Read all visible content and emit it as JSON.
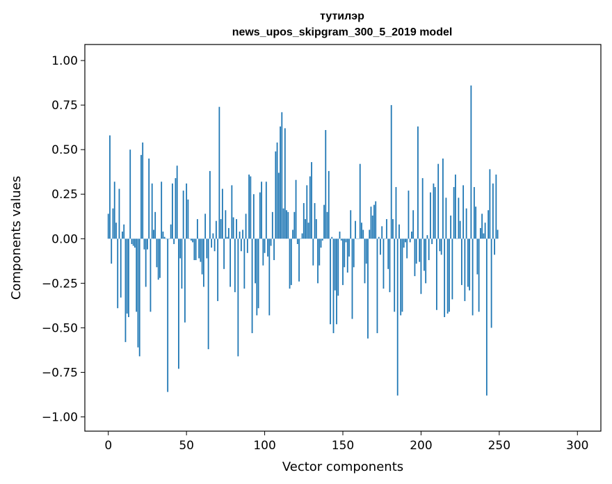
{
  "chart_data": {
    "type": "bar",
    "title": "тутилэр",
    "subtitle": "news_upos_skipgram_300_5_2019 model",
    "xlabel": "Vector components",
    "ylabel": "Components values",
    "xlim": [
      -15,
      315
    ],
    "ylim": [
      -1.08,
      1.09
    ],
    "xticks": [
      0,
      50,
      100,
      150,
      200,
      250,
      300
    ],
    "xtick_labels": [
      "0",
      "50",
      "100",
      "150",
      "200",
      "250",
      "300"
    ],
    "yticks": [
      1.0,
      0.75,
      0.5,
      0.25,
      0.0,
      -0.25,
      -0.5,
      -0.75,
      -1.0
    ],
    "ytick_labels": [
      "1.00",
      "0.75",
      "0.50",
      "0.25",
      "0.00",
      "−0.25",
      "−0.50",
      "−0.75",
      "−1.00"
    ],
    "grid": false,
    "bar_color": "#1f77b4",
    "values": [
      0.14,
      0.58,
      -0.14,
      0.17,
      0.32,
      0.09,
      -0.39,
      0.28,
      -0.33,
      0.04,
      0.08,
      -0.58,
      -0.42,
      -0.44,
      0.5,
      -0.03,
      -0.04,
      -0.05,
      -0.41,
      -0.61,
      -0.66,
      0.47,
      0.54,
      -0.06,
      -0.27,
      -0.06,
      0.45,
      -0.41,
      0.31,
      0.05,
      0.15,
      -0.16,
      -0.23,
      -0.22,
      0.32,
      0.04,
      0.01,
      0.0,
      -0.86,
      0.0,
      0.08,
      0.31,
      -0.03,
      0.34,
      0.41,
      -0.73,
      -0.11,
      -0.28,
      0.27,
      -0.47,
      0.31,
      0.22,
      0.0,
      -0.01,
      -0.02,
      -0.12,
      -0.12,
      0.11,
      -0.11,
      -0.13,
      -0.2,
      -0.27,
      0.14,
      -0.11,
      -0.62,
      0.38,
      -0.05,
      0.03,
      -0.07,
      0.1,
      -0.35,
      0.74,
      0.11,
      0.28,
      -0.17,
      0.16,
      0.01,
      0.06,
      -0.27,
      0.3,
      0.12,
      -0.3,
      0.11,
      -0.66,
      0.04,
      -0.07,
      0.05,
      -0.28,
      0.14,
      -0.08,
      0.36,
      0.35,
      -0.53,
      0.25,
      -0.25,
      -0.43,
      -0.39,
      0.26,
      0.32,
      -0.15,
      -0.08,
      0.32,
      -0.1,
      -0.43,
      -0.04,
      0.15,
      -0.12,
      0.49,
      0.54,
      0.37,
      0.63,
      0.71,
      0.17,
      0.62,
      0.16,
      0.15,
      -0.28,
      -0.26,
      0.05,
      0.15,
      0.33,
      -0.03,
      -0.24,
      0.0,
      0.03,
      0.2,
      0.11,
      0.3,
      0.09,
      0.35,
      0.43,
      -0.15,
      0.2,
      0.11,
      -0.25,
      -0.15,
      -0.05,
      -0.01,
      0.19,
      0.61,
      0.15,
      0.38,
      -0.48,
      0.01,
      -0.53,
      -0.29,
      -0.48,
      -0.32,
      0.04,
      -0.01,
      -0.26,
      -0.16,
      -0.02,
      -0.19,
      -0.1,
      0.16,
      -0.45,
      -0.16,
      0.1,
      0.0,
      0.0,
      0.42,
      0.09,
      0.05,
      -0.25,
      -0.14,
      -0.56,
      0.05,
      0.18,
      0.13,
      0.19,
      0.21,
      -0.53,
      0.01,
      -0.09,
      0.07,
      -0.28,
      0.0,
      0.11,
      -0.17,
      -0.3,
      0.75,
      0.11,
      -0.41,
      0.29,
      -0.88,
      0.08,
      -0.43,
      -0.41,
      -0.05,
      -0.02,
      -0.11,
      0.27,
      -0.02,
      0.04,
      0.16,
      -0.21,
      -0.14,
      0.63,
      -0.13,
      -0.31,
      0.34,
      -0.18,
      -0.25,
      0.02,
      -0.12,
      0.26,
      -0.03,
      0.31,
      0.29,
      -0.4,
      0.42,
      -0.07,
      -0.09,
      0.45,
      -0.44,
      0.23,
      -0.42,
      -0.41,
      0.13,
      -0.34,
      0.29,
      0.36,
      0.0,
      0.23,
      0.1,
      -0.26,
      0.3,
      -0.35,
      0.17,
      -0.27,
      -0.29,
      0.86,
      -0.43,
      0.29,
      0.18,
      -0.2,
      -0.41,
      0.06,
      0.14,
      0.03,
      0.09,
      -0.88,
      0.16,
      0.39,
      -0.5,
      0.31,
      -0.09,
      0.36,
      0.05
    ]
  }
}
